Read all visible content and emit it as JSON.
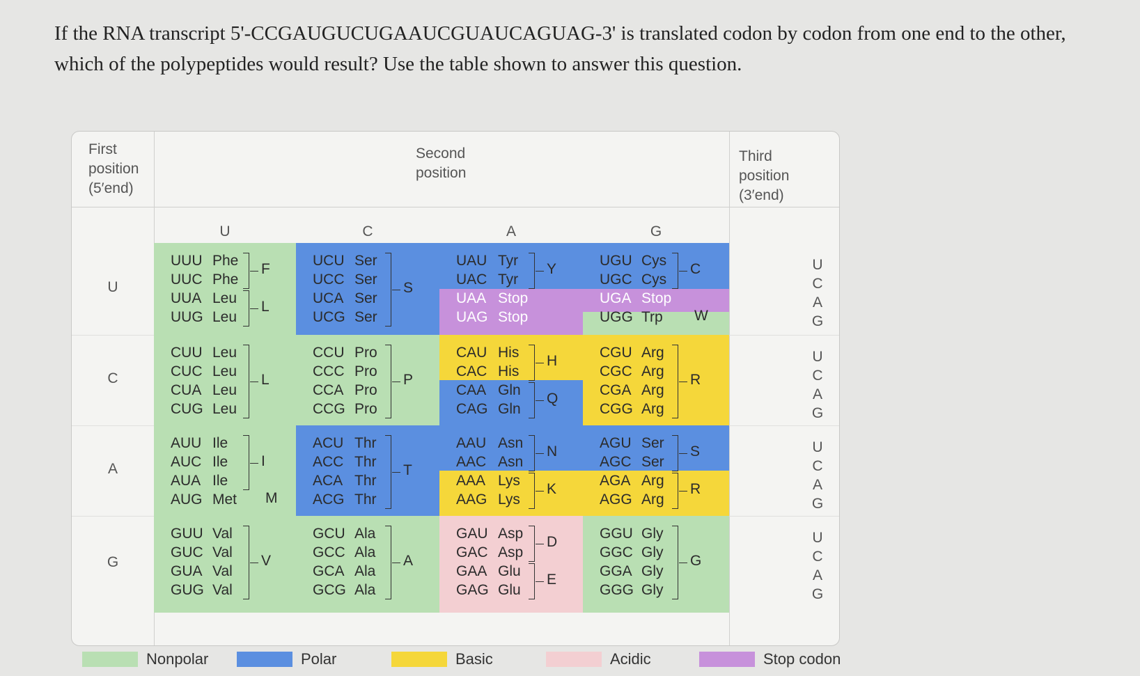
{
  "question": "If the RNA transcript 5'-CCGAUGUCUGAAUCGUAUCAGUAG-3' is translated codon by codon from one end to the other, which of the polypeptides would result? Use the table shown to answer this question.",
  "headers": {
    "first": "First position (5′end)",
    "second": "Second position",
    "third": "Third position (3′end)"
  },
  "bases": [
    "U",
    "C",
    "A",
    "G"
  ],
  "colors": {
    "nonpolar": "#b9dfb3",
    "polar": "#5b8fe0",
    "basic": "#f5d73a",
    "acidic": "#f3cfd2",
    "stop": "#c791db"
  },
  "cells": [
    [
      {
        "rows": [
          [
            "UUU",
            "Phe"
          ],
          [
            "UUC",
            "Phe"
          ],
          [
            "UUA",
            "Leu"
          ],
          [
            "UUG",
            "Leu"
          ]
        ],
        "groups": [
          [
            "F",
            0,
            1
          ],
          [
            "L",
            2,
            3
          ]
        ]
      },
      {
        "rows": [
          [
            "UCU",
            "Ser"
          ],
          [
            "UCC",
            "Ser"
          ],
          [
            "UCA",
            "Ser"
          ],
          [
            "UCG",
            "Ser"
          ]
        ],
        "groups": [
          [
            "S",
            0,
            3
          ]
        ]
      },
      {
        "rows": [
          [
            "UAU",
            "Tyr"
          ],
          [
            "UAC",
            "Tyr"
          ],
          [
            "UAA",
            "Stop"
          ],
          [
            "UAG",
            "Stop"
          ]
        ],
        "groups": [
          [
            "Y",
            0,
            1
          ]
        ]
      },
      {
        "rows": [
          [
            "UGU",
            "Cys"
          ],
          [
            "UGC",
            "Cys"
          ],
          [
            "UGA",
            "Stop"
          ],
          [
            "UGG",
            "Trp"
          ]
        ],
        "groups": [
          [
            "C",
            0,
            1
          ]
        ],
        "single": [
          [
            "W",
            3
          ]
        ]
      }
    ],
    [
      {
        "rows": [
          [
            "CUU",
            "Leu"
          ],
          [
            "CUC",
            "Leu"
          ],
          [
            "CUA",
            "Leu"
          ],
          [
            "CUG",
            "Leu"
          ]
        ],
        "groups": [
          [
            "L",
            0,
            3
          ]
        ]
      },
      {
        "rows": [
          [
            "CCU",
            "Pro"
          ],
          [
            "CCC",
            "Pro"
          ],
          [
            "CCA",
            "Pro"
          ],
          [
            "CCG",
            "Pro"
          ]
        ],
        "groups": [
          [
            "P",
            0,
            3
          ]
        ]
      },
      {
        "rows": [
          [
            "CAU",
            "His"
          ],
          [
            "CAC",
            "His"
          ],
          [
            "CAA",
            "Gln"
          ],
          [
            "CAG",
            "Gln"
          ]
        ],
        "groups": [
          [
            "H",
            0,
            1
          ],
          [
            "Q",
            2,
            3
          ]
        ]
      },
      {
        "rows": [
          [
            "CGU",
            "Arg"
          ],
          [
            "CGC",
            "Arg"
          ],
          [
            "CGA",
            "Arg"
          ],
          [
            "CGG",
            "Arg"
          ]
        ],
        "groups": [
          [
            "R",
            0,
            3
          ]
        ]
      }
    ],
    [
      {
        "rows": [
          [
            "AUU",
            "Ile"
          ],
          [
            "AUC",
            "Ile"
          ],
          [
            "AUA",
            "Ile"
          ],
          [
            "AUG",
            "Met"
          ]
        ],
        "groups": [
          [
            "I",
            0,
            2
          ]
        ],
        "single": [
          [
            "M",
            3
          ]
        ]
      },
      {
        "rows": [
          [
            "ACU",
            "Thr"
          ],
          [
            "ACC",
            "Thr"
          ],
          [
            "ACA",
            "Thr"
          ],
          [
            "ACG",
            "Thr"
          ]
        ],
        "groups": [
          [
            "T",
            0,
            3
          ]
        ]
      },
      {
        "rows": [
          [
            "AAU",
            "Asn"
          ],
          [
            "AAC",
            "Asn"
          ],
          [
            "AAA",
            "Lys"
          ],
          [
            "AAG",
            "Lys"
          ]
        ],
        "groups": [
          [
            "N",
            0,
            1
          ],
          [
            "K",
            2,
            3
          ]
        ]
      },
      {
        "rows": [
          [
            "AGU",
            "Ser"
          ],
          [
            "AGC",
            "Ser"
          ],
          [
            "AGA",
            "Arg"
          ],
          [
            "AGG",
            "Arg"
          ]
        ],
        "groups": [
          [
            "S",
            0,
            1
          ],
          [
            "R",
            2,
            3
          ]
        ]
      }
    ],
    [
      {
        "rows": [
          [
            "GUU",
            "Val"
          ],
          [
            "GUC",
            "Val"
          ],
          [
            "GUA",
            "Val"
          ],
          [
            "GUG",
            "Val"
          ]
        ],
        "groups": [
          [
            "V",
            0,
            3
          ]
        ]
      },
      {
        "rows": [
          [
            "GCU",
            "Ala"
          ],
          [
            "GCC",
            "Ala"
          ],
          [
            "GCA",
            "Ala"
          ],
          [
            "GCG",
            "Ala"
          ]
        ],
        "groups": [
          [
            "A",
            0,
            3
          ]
        ]
      },
      {
        "rows": [
          [
            "GAU",
            "Asp"
          ],
          [
            "GAC",
            "Asp"
          ],
          [
            "GAA",
            "Glu"
          ],
          [
            "GAG",
            "Glu"
          ]
        ],
        "groups": [
          [
            "D",
            0,
            1
          ],
          [
            "E",
            2,
            3
          ]
        ]
      },
      {
        "rows": [
          [
            "GGU",
            "Gly"
          ],
          [
            "GGC",
            "Gly"
          ],
          [
            "GGA",
            "Gly"
          ],
          [
            "GGG",
            "Gly"
          ]
        ],
        "groups": [
          [
            "G",
            0,
            3
          ]
        ]
      }
    ]
  ],
  "legend": [
    {
      "label": "Nonpolar",
      "key": "nonpolar"
    },
    {
      "label": "Polar",
      "key": "polar"
    },
    {
      "label": "Basic",
      "key": "basic"
    },
    {
      "label": "Acidic",
      "key": "acidic"
    },
    {
      "label": "Stop codon",
      "key": "stop"
    }
  ]
}
